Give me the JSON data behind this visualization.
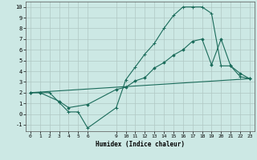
{
  "xlabel": "Humidex (Indice chaleur)",
  "bg_color": "#cce8e4",
  "grid_color": "#b0c8c4",
  "line_color": "#1a6b5a",
  "xlim": [
    -0.5,
    23.5
  ],
  "ylim": [
    -1.6,
    10.5
  ],
  "xticks": [
    0,
    1,
    2,
    3,
    4,
    5,
    6,
    9,
    10,
    11,
    12,
    13,
    14,
    15,
    16,
    17,
    18,
    19,
    20,
    21,
    22,
    23
  ],
  "yticks": [
    -1,
    0,
    1,
    2,
    3,
    4,
    5,
    6,
    7,
    8,
    9,
    10
  ],
  "line1_x": [
    0,
    1,
    2,
    3,
    4,
    5,
    6,
    9,
    10,
    11,
    12,
    13,
    14,
    15,
    16,
    17,
    18,
    19,
    20,
    21,
    22,
    23
  ],
  "line1_y": [
    2.0,
    2.0,
    2.0,
    1.1,
    0.2,
    0.2,
    -1.3,
    0.6,
    3.2,
    4.4,
    5.6,
    6.6,
    8.0,
    9.2,
    10.0,
    10.0,
    10.0,
    9.4,
    4.5,
    4.5,
    3.5,
    3.3
  ],
  "line2_x": [
    0,
    1,
    3,
    4,
    6,
    9,
    10,
    11,
    12,
    13,
    14,
    15,
    16,
    17,
    18,
    19,
    20,
    21,
    22,
    23
  ],
  "line2_y": [
    2.0,
    2.0,
    1.2,
    0.6,
    0.9,
    2.3,
    2.5,
    3.1,
    3.4,
    4.3,
    4.8,
    5.5,
    6.0,
    6.8,
    7.0,
    4.6,
    7.0,
    4.5,
    3.8,
    3.3
  ],
  "line3_x": [
    0,
    23
  ],
  "line3_y": [
    2.0,
    3.3
  ]
}
